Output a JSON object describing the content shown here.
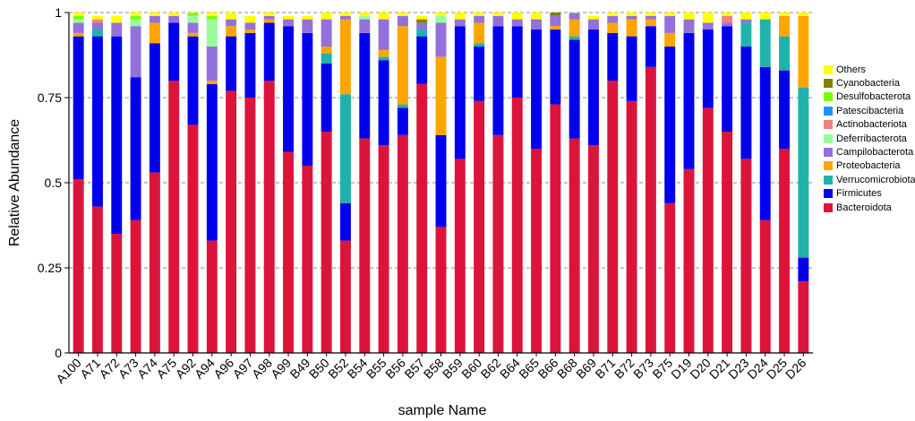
{
  "chart_data": {
    "type": "bar",
    "stacked": true,
    "title": "",
    "xlabel": "sample Name",
    "ylabel": "Relative Abundance",
    "ylim": [
      0,
      1
    ],
    "yticks": [
      "0",
      "0.25",
      "0.5",
      "0.75",
      "1"
    ],
    "ytick_values": [
      0,
      0.25,
      0.5,
      0.75,
      1
    ],
    "grid": "horizontal dashed",
    "legend_position": "right",
    "categories": [
      "A100",
      "A71",
      "A72",
      "A73",
      "A74",
      "A75",
      "A92",
      "A94",
      "A96",
      "A97",
      "A98",
      "A99",
      "B49",
      "B50",
      "B52",
      "B54",
      "B55",
      "B56",
      "B57",
      "B58",
      "B59",
      "B60",
      "B62",
      "B64",
      "B65",
      "B66",
      "B68",
      "B69",
      "B71",
      "B72",
      "B73",
      "B75",
      "D19",
      "D20",
      "D21",
      "D23",
      "D24",
      "D25",
      "D26"
    ],
    "series": [
      {
        "name": "Bacteroidota",
        "color": "#dc143c",
        "values": [
          0.51,
          0.43,
          0.35,
          0.39,
          0.53,
          0.8,
          0.67,
          0.33,
          0.77,
          0.75,
          0.8,
          0.59,
          0.55,
          0.65,
          0.33,
          0.63,
          0.61,
          0.64,
          0.79,
          0.37,
          0.57,
          0.74,
          0.64,
          0.75,
          0.6,
          0.73,
          0.63,
          0.61,
          0.8,
          0.74,
          0.84,
          0.44,
          0.54,
          0.72,
          0.65,
          0.57,
          0.39,
          0.6,
          0.21
        ]
      },
      {
        "name": "Firmicutes",
        "color": "#0000ee",
        "values": [
          0.42,
          0.5,
          0.58,
          0.42,
          0.38,
          0.17,
          0.26,
          0.46,
          0.16,
          0.19,
          0.17,
          0.37,
          0.39,
          0.2,
          0.11,
          0.31,
          0.25,
          0.08,
          0.14,
          0.27,
          0.39,
          0.16,
          0.32,
          0.21,
          0.35,
          0.22,
          0.29,
          0.34,
          0.14,
          0.19,
          0.12,
          0.46,
          0.4,
          0.23,
          0.31,
          0.33,
          0.45,
          0.23,
          0.07
        ]
      },
      {
        "name": "Verrucomicrobiota",
        "color": "#20b2aa",
        "values": [
          0,
          0.02,
          0,
          0,
          0,
          0,
          0,
          0,
          0,
          0,
          0,
          0,
          0,
          0.03,
          0.32,
          0,
          0.01,
          0.01,
          0.02,
          0,
          0,
          0.01,
          0,
          0,
          0,
          0,
          0.01,
          0,
          0,
          0,
          0,
          0,
          0,
          0,
          0,
          0.07,
          0.14,
          0.1,
          0.5
        ]
      },
      {
        "name": "Proteobacteria",
        "color": "#ffa500",
        "values": [
          0.01,
          0,
          0,
          0,
          0.06,
          0,
          0.01,
          0.01,
          0.03,
          0.01,
          0.01,
          0,
          0,
          0.02,
          0.22,
          0,
          0.02,
          0.23,
          0,
          0.23,
          0,
          0.06,
          0,
          0,
          0,
          0.01,
          0.05,
          0,
          0.03,
          0.05,
          0.02,
          0.04,
          0,
          0,
          0,
          0,
          0,
          0.06,
          0.21
        ]
      },
      {
        "name": "Campilobacterota",
        "color": "#9370db",
        "values": [
          0.03,
          0.02,
          0.04,
          0.15,
          0.02,
          0.02,
          0.03,
          0.1,
          0.02,
          0.02,
          0.01,
          0.02,
          0.04,
          0.08,
          0.01,
          0.04,
          0.09,
          0.03,
          0.02,
          0.1,
          0.02,
          0.02,
          0.03,
          0.02,
          0.03,
          0.03,
          0.02,
          0.03,
          0.02,
          0.01,
          0.01,
          0.05,
          0.04,
          0.02,
          0.01,
          0.01,
          0,
          0,
          0
        ]
      },
      {
        "name": "Deferribacterota",
        "color": "#98fb98",
        "values": [
          0.01,
          0,
          0,
          0.02,
          0,
          0,
          0.02,
          0.08,
          0,
          0,
          0,
          0,
          0,
          0,
          0,
          0.01,
          0,
          0,
          0,
          0.02,
          0,
          0,
          0,
          0,
          0,
          0,
          0,
          0,
          0,
          0,
          0,
          0,
          0,
          0,
          0,
          0,
          0,
          0,
          0
        ]
      },
      {
        "name": "Actinobacteriota",
        "color": "#f08080",
        "values": [
          0,
          0.01,
          0,
          0,
          0,
          0,
          0,
          0,
          0,
          0,
          0,
          0,
          0,
          0,
          0,
          0,
          0,
          0,
          0,
          0,
          0,
          0,
          0,
          0,
          0,
          0,
          0,
          0,
          0,
          0,
          0,
          0,
          0,
          0,
          0.02,
          0,
          0,
          0,
          0
        ]
      },
      {
        "name": "Patescibacteria",
        "color": "#1e90ff",
        "values": [
          0,
          0,
          0,
          0,
          0,
          0,
          0,
          0,
          0,
          0,
          0,
          0,
          0,
          0,
          0,
          0,
          0,
          0,
          0,
          0,
          0,
          0,
          0,
          0,
          0,
          0,
          0,
          0,
          0,
          0,
          0,
          0,
          0,
          0,
          0,
          0,
          0,
          0,
          0
        ]
      },
      {
        "name": "Desulfobacterota",
        "color": "#7cfc00",
        "values": [
          0.01,
          0,
          0,
          0.01,
          0,
          0,
          0.01,
          0.01,
          0,
          0,
          0,
          0,
          0,
          0,
          0,
          0,
          0,
          0,
          0,
          0,
          0,
          0,
          0,
          0,
          0,
          0,
          0,
          0,
          0,
          0,
          0,
          0,
          0,
          0,
          0,
          0,
          0,
          0,
          0
        ]
      },
      {
        "name": "Cyanobacteria",
        "color": "#808000",
        "values": [
          0,
          0,
          0,
          0,
          0,
          0,
          0,
          0,
          0,
          0,
          0,
          0,
          0,
          0,
          0,
          0,
          0,
          0,
          0.01,
          0,
          0,
          0,
          0,
          0,
          0,
          0.01,
          0,
          0,
          0,
          0,
          0,
          0,
          0,
          0,
          0,
          0,
          0,
          0,
          0
        ]
      },
      {
        "name": "Others",
        "color": "#ffff00",
        "values": [
          0.01,
          0.01,
          0.02,
          0.01,
          0.01,
          0.01,
          0.01,
          0.01,
          0.02,
          0.02,
          0.01,
          0.01,
          0.01,
          0.02,
          0.01,
          0.01,
          0.02,
          0.01,
          0.01,
          0.01,
          0.02,
          0.01,
          0.01,
          0.02,
          0.02,
          0,
          0.01,
          0.01,
          0.01,
          0.01,
          0.01,
          0.01,
          0.02,
          0.03,
          0.01,
          0.02,
          0.02,
          0.01,
          0.01
        ]
      }
    ]
  }
}
